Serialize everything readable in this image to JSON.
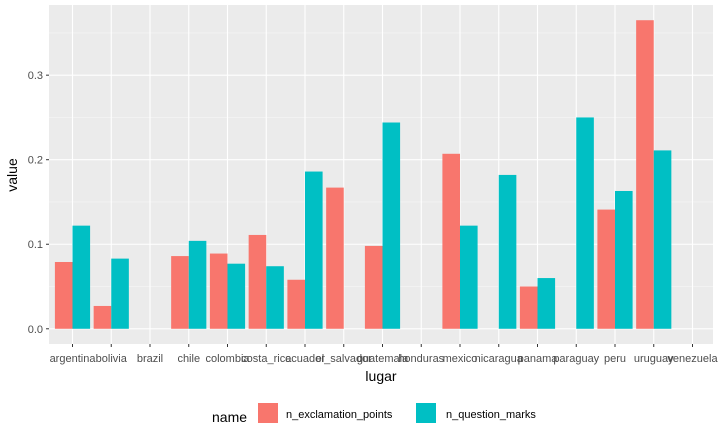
{
  "chart_data": {
    "type": "bar",
    "xlabel": "lugar",
    "ylabel": "value",
    "ylim": [
      -0.018,
      0.383
    ],
    "yticks": [
      0.0,
      0.1,
      0.2,
      0.3
    ],
    "ytick_labels": [
      "0.0",
      "0.1",
      "0.2",
      "0.3"
    ],
    "grid": true,
    "legend_position": "bottom",
    "legend_title": "name",
    "categories": [
      "argentina",
      "bolivia",
      "brazil",
      "chile",
      "colombia",
      "costa_rica",
      "ecuador",
      "el_salvador",
      "guatemala",
      "honduras",
      "mexico",
      "nicaragua",
      "panama",
      "paraguay",
      "peru",
      "uruguay",
      "venezuela"
    ],
    "series": [
      {
        "name": "n_exclamation_points",
        "color": "#F8766D",
        "values": [
          0.079,
          0.027,
          null,
          0.086,
          0.089,
          0.111,
          0.058,
          0.167,
          0.098,
          null,
          0.207,
          null,
          0.05,
          null,
          0.141,
          0.365,
          null
        ]
      },
      {
        "name": "n_question_marks",
        "color": "#00BFC4",
        "values": [
          0.122,
          0.083,
          null,
          0.104,
          0.077,
          0.074,
          0.186,
          null,
          0.244,
          null,
          0.122,
          0.182,
          0.06,
          0.25,
          0.163,
          0.211,
          null
        ]
      }
    ],
    "colors": {
      "panel_background": "#EBEBEB",
      "grid_major": "#FFFFFF",
      "axis_text": "#4D4D4D",
      "title_text": "#000000"
    }
  }
}
